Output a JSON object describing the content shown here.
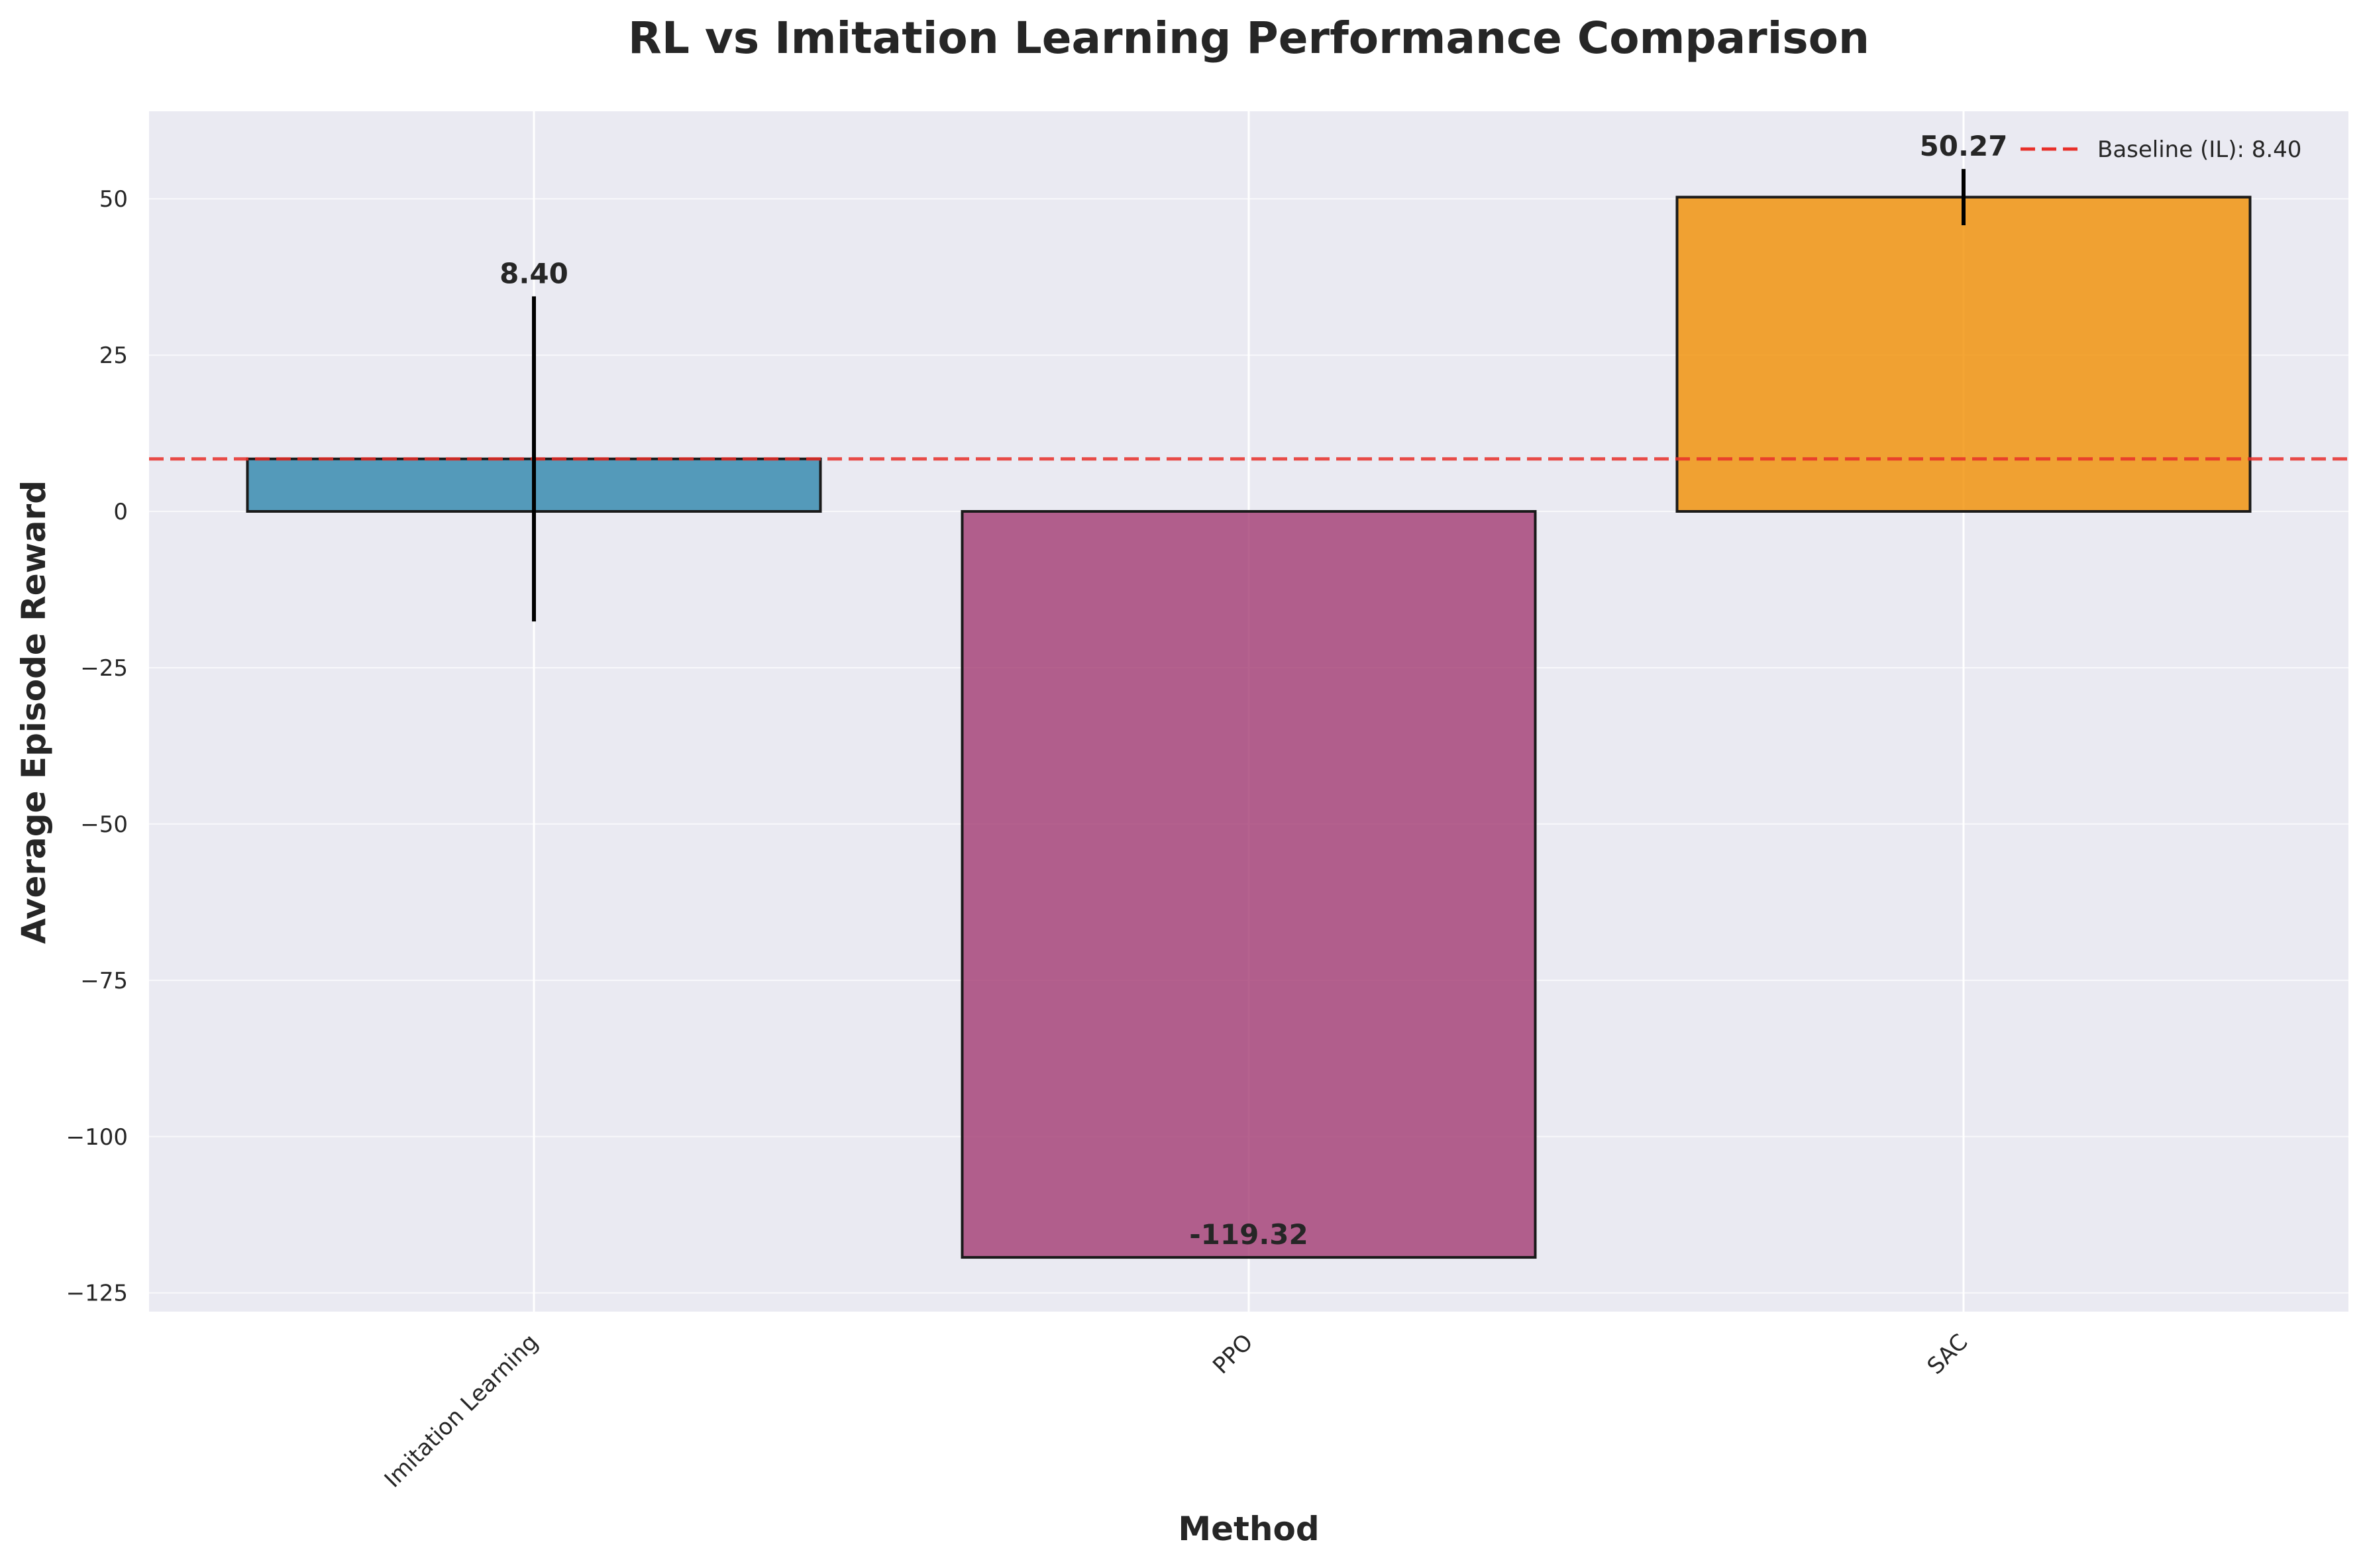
{
  "chart_data": {
    "type": "bar",
    "title": "RL vs Imitation Learning Performance Comparison",
    "xlabel": "Method",
    "ylabel": "Average Episode Reward",
    "categories": [
      "Imitation Learning",
      "PPO",
      "SAC"
    ],
    "values": [
      8.4,
      -119.32,
      50.27
    ],
    "value_labels": [
      "8.40",
      "-119.32",
      "50.27"
    ],
    "error_bars": [
      26.0,
      0.0,
      4.5
    ],
    "colors": [
      "#2E86AB",
      "#A23B72",
      "#F18F01"
    ],
    "ylim": [
      -128,
      64
    ],
    "yticks": [
      -125,
      -100,
      -75,
      -50,
      -25,
      0,
      25,
      50
    ],
    "ytick_labels": [
      "−125",
      "−100",
      "−75",
      "−50",
      "−25",
      "0",
      "25",
      "50"
    ],
    "baseline": {
      "value": 8.4,
      "label": "Baseline (IL): 8.40",
      "color": "#E8302A"
    },
    "grid": true,
    "legend_position": "top-right"
  }
}
